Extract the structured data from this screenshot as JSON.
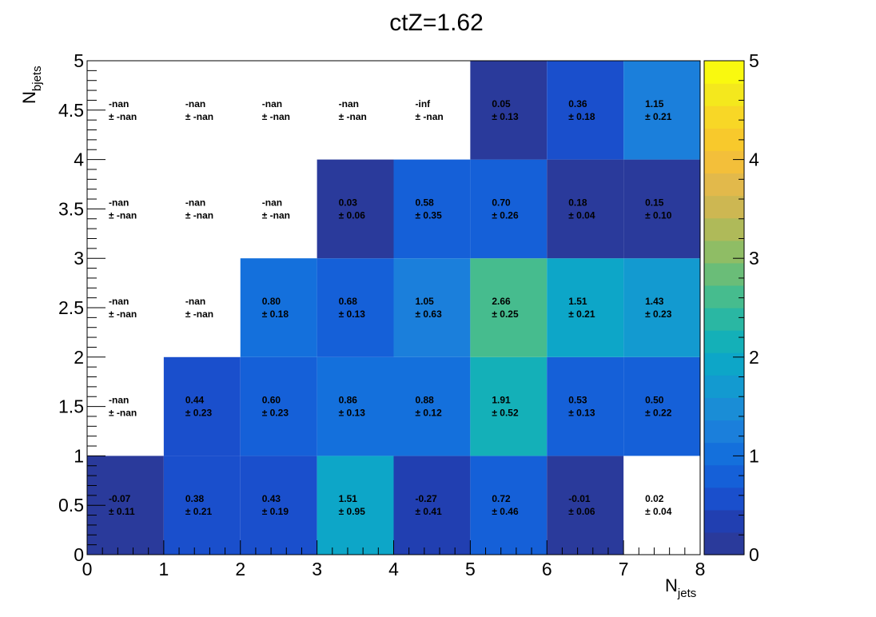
{
  "chart_data": {
    "type": "heatmap",
    "title": "ctZ=1.62",
    "xlabel": {
      "main": "N",
      "sub": "jets"
    },
    "ylabel": {
      "main": "N",
      "sub": "bjets"
    },
    "xlim": [
      0,
      8
    ],
    "ylim": [
      0,
      5
    ],
    "x_ticks": [
      "0",
      "1",
      "2",
      "3",
      "4",
      "5",
      "6",
      "7",
      "8"
    ],
    "y_ticks": [
      "0",
      "0.5",
      "1",
      "1.5",
      "2",
      "2.5",
      "3",
      "3.5",
      "4",
      "4.5",
      "5"
    ],
    "zlim": [
      0,
      5
    ],
    "z_ticks": [
      "0",
      "1",
      "2",
      "3",
      "4",
      "5"
    ],
    "palette": [
      "#2a3a9b",
      "#213fb1",
      "#1a4fcc",
      "#1560d8",
      "#1470dc",
      "#1b7fdb",
      "#1a8dd6",
      "#139ad0",
      "#0da6c8",
      "#14b0b8",
      "#2ab7a3",
      "#46bc8e",
      "#6abd78",
      "#8fbd65",
      "#afba59",
      "#cdb752",
      "#e2b94b",
      "#f3bf3a",
      "#f8c92c",
      "#f8d726",
      "#f4e81d",
      "#f9f90f"
    ],
    "cells": [
      {
        "x": 0,
        "y": 0,
        "z": -0.07,
        "value": "-0.07",
        "error": "± 0.11",
        "color": "#2a3a9b"
      },
      {
        "x": 1,
        "y": 0,
        "z": 0.38,
        "value": "0.38",
        "error": "± 0.21",
        "color": "#1a4fcc"
      },
      {
        "x": 2,
        "y": 0,
        "z": 0.43,
        "value": "0.43",
        "error": "± 0.19",
        "color": "#1a4fcc"
      },
      {
        "x": 3,
        "y": 0,
        "z": 1.51,
        "value": "1.51",
        "error": "± 0.95",
        "color": "#0da6c8"
      },
      {
        "x": 4,
        "y": 0,
        "z": -0.27,
        "value": "-0.27",
        "error": "± 0.41",
        "color": "#213fb1"
      },
      {
        "x": 5,
        "y": 0,
        "z": 0.72,
        "value": "0.72",
        "error": "± 0.46",
        "color": "#1560d8"
      },
      {
        "x": 6,
        "y": 0,
        "z": -0.01,
        "value": "-0.01",
        "error": "± 0.06",
        "color": "#2a3a9b"
      },
      {
        "x": 7,
        "y": 0,
        "z": 0.02,
        "value": "0.02",
        "error": "± 0.04",
        "color": ""
      },
      {
        "x": 0,
        "y": 1,
        "z": null,
        "value": "-nan",
        "error": "± -nan",
        "color": ""
      },
      {
        "x": 1,
        "y": 1,
        "z": 0.44,
        "value": "0.44",
        "error": "± 0.23",
        "color": "#1a4fcc"
      },
      {
        "x": 2,
        "y": 1,
        "z": 0.6,
        "value": "0.60",
        "error": "± 0.23",
        "color": "#1560d8"
      },
      {
        "x": 3,
        "y": 1,
        "z": 0.86,
        "value": "0.86",
        "error": "± 0.13",
        "color": "#1470dc"
      },
      {
        "x": 4,
        "y": 1,
        "z": 0.88,
        "value": "0.88",
        "error": "± 0.12",
        "color": "#1470dc"
      },
      {
        "x": 5,
        "y": 1,
        "z": 1.91,
        "value": "1.91",
        "error": "± 0.52",
        "color": "#14b0b8"
      },
      {
        "x": 6,
        "y": 1,
        "z": 0.53,
        "value": "0.53",
        "error": "± 0.13",
        "color": "#1560d8"
      },
      {
        "x": 7,
        "y": 1,
        "z": 0.5,
        "value": "0.50",
        "error": "± 0.22",
        "color": "#1560d8"
      },
      {
        "x": 0,
        "y": 2,
        "z": null,
        "value": "-nan",
        "error": "± -nan",
        "color": ""
      },
      {
        "x": 1,
        "y": 2,
        "z": null,
        "value": "-nan",
        "error": "± -nan",
        "color": ""
      },
      {
        "x": 2,
        "y": 2,
        "z": 0.8,
        "value": "0.80",
        "error": "± 0.18",
        "color": "#1470dc"
      },
      {
        "x": 3,
        "y": 2,
        "z": 0.68,
        "value": "0.68",
        "error": "± 0.13",
        "color": "#1560d8"
      },
      {
        "x": 4,
        "y": 2,
        "z": 1.05,
        "value": "1.05",
        "error": "± 0.63",
        "color": "#1b7fdb"
      },
      {
        "x": 5,
        "y": 2,
        "z": 2.66,
        "value": "2.66",
        "error": "± 0.25",
        "color": "#46bc8e"
      },
      {
        "x": 6,
        "y": 2,
        "z": 1.51,
        "value": "1.51",
        "error": "± 0.21",
        "color": "#0da6c8"
      },
      {
        "x": 7,
        "y": 2,
        "z": 1.43,
        "value": "1.43",
        "error": "± 0.23",
        "color": "#139ad0"
      },
      {
        "x": 0,
        "y": 3,
        "z": null,
        "value": "-nan",
        "error": "± -nan",
        "color": ""
      },
      {
        "x": 1,
        "y": 3,
        "z": null,
        "value": "-nan",
        "error": "± -nan",
        "color": ""
      },
      {
        "x": 2,
        "y": 3,
        "z": null,
        "value": "-nan",
        "error": "± -nan",
        "color": ""
      },
      {
        "x": 3,
        "y": 3,
        "z": 0.03,
        "value": "0.03",
        "error": "± 0.06",
        "color": "#2a3a9b"
      },
      {
        "x": 4,
        "y": 3,
        "z": 0.58,
        "value": "0.58",
        "error": "± 0.35",
        "color": "#1560d8"
      },
      {
        "x": 5,
        "y": 3,
        "z": 0.7,
        "value": "0.70",
        "error": "± 0.26",
        "color": "#1560d8"
      },
      {
        "x": 6,
        "y": 3,
        "z": 0.18,
        "value": "0.18",
        "error": "± 0.04",
        "color": "#2a3a9b"
      },
      {
        "x": 7,
        "y": 3,
        "z": 0.15,
        "value": "0.15",
        "error": "± 0.10",
        "color": "#2a3a9b"
      },
      {
        "x": 0,
        "y": 4,
        "z": null,
        "value": "-nan",
        "error": "± -nan",
        "color": ""
      },
      {
        "x": 1,
        "y": 4,
        "z": null,
        "value": "-nan",
        "error": "± -nan",
        "color": ""
      },
      {
        "x": 2,
        "y": 4,
        "z": null,
        "value": "-nan",
        "error": "± -nan",
        "color": ""
      },
      {
        "x": 3,
        "y": 4,
        "z": null,
        "value": "-nan",
        "error": "± -nan",
        "color": ""
      },
      {
        "x": 4,
        "y": 4,
        "z": null,
        "value": "-inf",
        "error": "± -nan",
        "color": ""
      },
      {
        "x": 5,
        "y": 4,
        "z": 0.05,
        "value": "0.05",
        "error": "± 0.13",
        "color": "#2a3a9b"
      },
      {
        "x": 6,
        "y": 4,
        "z": 0.36,
        "value": "0.36",
        "error": "± 0.18",
        "color": "#1a4fcc"
      },
      {
        "x": 7,
        "y": 4,
        "z": 1.15,
        "value": "1.15",
        "error": "± 0.21",
        "color": "#1b7fdb"
      }
    ]
  }
}
